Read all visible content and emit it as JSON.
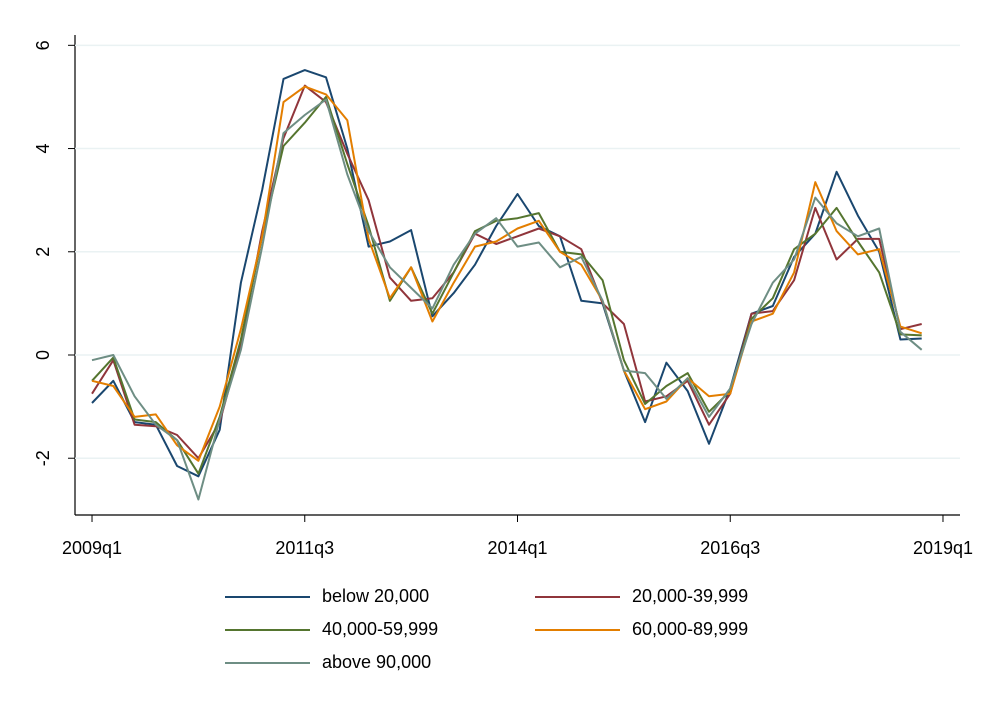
{
  "chart_data": {
    "type": "line",
    "x": [
      2009,
      2009.25,
      2009.5,
      2009.75,
      2010,
      2010.25,
      2010.5,
      2010.75,
      2011,
      2011.25,
      2011.5,
      2011.75,
      2012,
      2012.25,
      2012.5,
      2012.75,
      2013,
      2013.25,
      2013.5,
      2013.75,
      2014,
      2014.25,
      2014.5,
      2014.75,
      2015,
      2015.25,
      2015.5,
      2015.75,
      2016,
      2016.25,
      2016.5,
      2016.75,
      2017,
      2017.25,
      2017.5,
      2017.75,
      2018,
      2018.25,
      2018.5,
      2018.75
    ],
    "xlim": [
      2008.8,
      2019.2
    ],
    "xticks": [
      {
        "value": 2009,
        "label": "2009q1"
      },
      {
        "value": 2011.5,
        "label": "2011q3"
      },
      {
        "value": 2014,
        "label": "2014q1"
      },
      {
        "value": 2016.5,
        "label": "2016q3"
      },
      {
        "value": 2019,
        "label": "2019q1"
      }
    ],
    "ylim": [
      -3.1,
      6.2
    ],
    "yticks": [
      -2,
      0,
      2,
      4,
      6
    ],
    "grid": true,
    "series": [
      {
        "name": "below 20,000",
        "color": "#1a476f",
        "values": [
          -0.93,
          -0.5,
          -1.3,
          -1.35,
          -2.15,
          -2.35,
          -1.45,
          1.4,
          3.2,
          5.35,
          5.52,
          5.38,
          4.0,
          2.1,
          2.2,
          2.42,
          0.75,
          1.2,
          1.75,
          2.5,
          3.12,
          2.5,
          2.3,
          1.05,
          1.0,
          -0.3,
          -1.3,
          -0.15,
          -0.7,
          -1.72,
          -0.65,
          0.8,
          0.95,
          1.9,
          2.35,
          3.55,
          2.7,
          2.0,
          0.3,
          0.32
        ]
      },
      {
        "name": "20,000-39,999",
        "color": "#90353b",
        "values": [
          -0.75,
          -0.1,
          -1.35,
          -1.38,
          -1.55,
          -2.0,
          -1.3,
          0.2,
          2.4,
          4.2,
          5.22,
          4.9,
          3.9,
          3.0,
          1.5,
          1.05,
          1.1,
          1.6,
          2.35,
          2.15,
          2.3,
          2.45,
          2.3,
          2.05,
          1.0,
          0.6,
          -0.9,
          -0.8,
          -0.5,
          -1.35,
          -0.75,
          0.8,
          0.85,
          1.45,
          2.85,
          1.85,
          2.25,
          2.25,
          0.5,
          0.6
        ]
      },
      {
        "name": "40,000-59,999",
        "color": "#55752f",
        "values": [
          -0.5,
          -0.05,
          -1.25,
          -1.3,
          -1.65,
          -2.3,
          -1.2,
          0.3,
          2.3,
          4.05,
          4.5,
          5.0,
          3.7,
          2.5,
          1.05,
          1.7,
          0.8,
          1.6,
          2.4,
          2.6,
          2.65,
          2.75,
          2.0,
          1.95,
          1.45,
          -0.1,
          -0.95,
          -0.6,
          -0.35,
          -1.1,
          -0.7,
          0.7,
          1.1,
          2.05,
          2.35,
          2.85,
          2.2,
          1.6,
          0.4,
          0.38
        ]
      },
      {
        "name": "60,000-89,999",
        "color": "#e37e00",
        "values": [
          -0.5,
          -0.6,
          -1.2,
          -1.15,
          -1.75,
          -2.05,
          -1.0,
          0.5,
          2.3,
          4.9,
          5.2,
          5.05,
          4.55,
          2.25,
          1.1,
          1.7,
          0.65,
          1.4,
          2.1,
          2.2,
          2.45,
          2.6,
          2.0,
          1.75,
          1.05,
          -0.3,
          -1.05,
          -0.9,
          -0.45,
          -0.8,
          -0.75,
          0.65,
          0.8,
          1.6,
          3.35,
          2.4,
          1.95,
          2.05,
          0.55,
          0.42
        ]
      },
      {
        "name": "above 90,000",
        "color": "#6e8e84",
        "values": [
          -0.1,
          0.0,
          -0.8,
          -1.35,
          -1.65,
          -2.8,
          -1.25,
          0.1,
          2.1,
          4.3,
          4.65,
          4.95,
          3.5,
          2.4,
          1.7,
          1.3,
          0.9,
          1.75,
          2.35,
          2.65,
          2.1,
          2.18,
          1.7,
          1.9,
          1.05,
          -0.3,
          -0.35,
          -0.85,
          -0.45,
          -1.2,
          -0.65,
          0.6,
          1.4,
          1.85,
          3.05,
          2.55,
          2.3,
          2.45,
          0.45,
          0.1
        ]
      }
    ]
  }
}
